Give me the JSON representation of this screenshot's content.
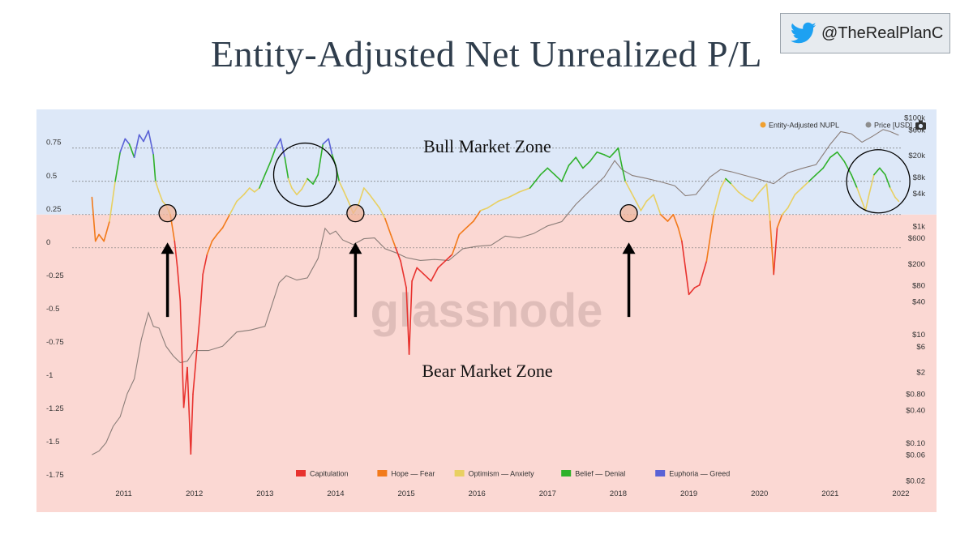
{
  "title": "Entity-Adjusted Net Unrealized P/L",
  "twitter_handle": "@TheRealPlanC",
  "icons": {
    "twitter": "bird-icon",
    "camera": "camera-icon"
  },
  "colors": {
    "bull_zone_bg": "#dde8f8",
    "bear_zone_bg": "#fbd8d3",
    "title_text": "#2f3d4c",
    "price_line": "#8a7d78",
    "twitter_blue": "#1da1f2"
  },
  "zones": {
    "bull_label": "Bull Market Zone",
    "bear_label": "Bear Market Zone",
    "boundary_nupl": 0.25
  },
  "watermark": "glassnode",
  "chart_data": {
    "type": "line",
    "x_tick_labels": [
      "2011",
      "2012",
      "2013",
      "2014",
      "2015",
      "2016",
      "2017",
      "2018",
      "2019",
      "2020",
      "2021",
      "2022"
    ],
    "xlim": [
      2010.5,
      2022.0
    ],
    "y_left": {
      "tick_labels": [
        "0.75",
        "0.5",
        "0.25",
        "0",
        "-0.25",
        "-0.5",
        "-0.75",
        "-1",
        "-1.25",
        "-1.5",
        "-1.75"
      ],
      "ticks": [
        0.75,
        0.5,
        0.25,
        0,
        -0.25,
        -0.5,
        -0.75,
        -1,
        -1.25,
        -1.5,
        -1.75
      ],
      "ylim": [
        -1.75,
        0.98
      ]
    },
    "y_right": {
      "scale": "log",
      "tick_labels": [
        "$100k",
        "$60k",
        "$20k",
        "$8k",
        "$4k",
        "$1k",
        "$600",
        "$200",
        "$80",
        "$40",
        "$10",
        "$6",
        "$2",
        "$0.80",
        "$0.40",
        "$0.10",
        "$0.06",
        "$0.02"
      ],
      "ticks": [
        100000,
        60000,
        20000,
        8000,
        4000,
        1000,
        600,
        200,
        80,
        40,
        10,
        6,
        2,
        0.8,
        0.4,
        0.1,
        0.06,
        0.02
      ],
      "ylim": [
        0.02,
        100000
      ]
    },
    "legend_top": [
      {
        "label": "Entity-Adjusted NUPL",
        "color": "#f0a030"
      },
      {
        "label": "Price [USD]",
        "color": "#8e8e8e"
      }
    ],
    "legend_bottom": [
      {
        "label": "Capitulation",
        "color": "#e8322e",
        "range": [
          -10,
          0
        ]
      },
      {
        "label": "Hope — Fear",
        "color": "#f27a1a",
        "range": [
          0,
          0.25
        ]
      },
      {
        "label": "Optimism — Anxiety",
        "color": "#e8d062",
        "range": [
          0.25,
          0.5
        ]
      },
      {
        "label": "Belief — Denial",
        "color": "#2fb12a",
        "range": [
          0.5,
          0.75
        ]
      },
      {
        "label": "Euphoria — Greed",
        "color": "#5a62d6",
        "range": [
          0.75,
          10
        ]
      }
    ],
    "series": [
      {
        "name": "Entity-Adjusted NUPL",
        "x": [
          2010.55,
          2010.6,
          2010.65,
          2010.72,
          2010.8,
          2010.88,
          2010.95,
          2011.02,
          2011.08,
          2011.15,
          2011.22,
          2011.28,
          2011.35,
          2011.42,
          2011.45,
          2011.5,
          2011.55,
          2011.6,
          2011.66,
          2011.72,
          2011.76,
          2011.8,
          2011.85,
          2011.9,
          2011.95,
          2011.98,
          2012.03,
          2012.08,
          2012.12,
          2012.18,
          2012.25,
          2012.32,
          2012.4,
          2012.5,
          2012.6,
          2012.7,
          2012.78,
          2012.85,
          2012.92,
          2013.0,
          2013.08,
          2013.15,
          2013.22,
          2013.28,
          2013.33,
          2013.38,
          2013.45,
          2013.52,
          2013.6,
          2013.68,
          2013.75,
          2013.82,
          2013.9,
          2013.95,
          2014.0,
          2014.05,
          2014.12,
          2014.18,
          2014.25,
          2014.32,
          2014.4,
          2014.48,
          2014.55,
          2014.62,
          2014.7,
          2014.78,
          2014.85,
          2014.92,
          2015.0,
          2015.04,
          2015.08,
          2015.15,
          2015.25,
          2015.35,
          2015.45,
          2015.55,
          2015.65,
          2015.75,
          2015.85,
          2015.95,
          2016.05,
          2016.15,
          2016.3,
          2016.45,
          2016.6,
          2016.75,
          2016.9,
          2017.0,
          2017.1,
          2017.2,
          2017.3,
          2017.4,
          2017.5,
          2017.6,
          2017.7,
          2017.8,
          2017.88,
          2017.95,
          2018.0,
          2018.05,
          2018.1,
          2018.18,
          2018.25,
          2018.32,
          2018.4,
          2018.5,
          2018.6,
          2018.7,
          2018.78,
          2018.85,
          2018.9,
          2018.95,
          2019.0,
          2019.08,
          2019.15,
          2019.25,
          2019.35,
          2019.45,
          2019.52,
          2019.6,
          2019.7,
          2019.8,
          2019.9,
          2020.0,
          2020.1,
          2020.15,
          2020.2,
          2020.25,
          2020.32,
          2020.4,
          2020.5,
          2020.6,
          2020.7,
          2020.8,
          2020.9,
          2021.0,
          2021.1,
          2021.2,
          2021.3,
          2021.38,
          2021.45,
          2021.5,
          2021.55,
          2021.62,
          2021.7,
          2021.78,
          2021.85,
          2021.92,
          2021.97
        ],
        "y": [
          0.38,
          0.05,
          0.1,
          0.05,
          0.2,
          0.5,
          0.72,
          0.82,
          0.78,
          0.68,
          0.85,
          0.8,
          0.88,
          0.7,
          0.5,
          0.42,
          0.35,
          0.32,
          0.25,
          0.05,
          -0.15,
          -0.4,
          -1.2,
          -0.9,
          -1.55,
          -1.1,
          -0.8,
          -0.5,
          -0.2,
          -0.05,
          0.05,
          0.1,
          0.15,
          0.25,
          0.35,
          0.4,
          0.45,
          0.42,
          0.45,
          0.55,
          0.65,
          0.75,
          0.82,
          0.68,
          0.52,
          0.45,
          0.4,
          0.44,
          0.52,
          0.48,
          0.55,
          0.78,
          0.82,
          0.7,
          0.62,
          0.5,
          0.42,
          0.35,
          0.26,
          0.32,
          0.45,
          0.4,
          0.35,
          0.3,
          0.22,
          0.1,
          0.0,
          -0.1,
          -0.3,
          -0.8,
          -0.25,
          -0.15,
          -0.2,
          -0.25,
          -0.15,
          -0.1,
          -0.05,
          0.1,
          0.15,
          0.2,
          0.28,
          0.3,
          0.35,
          0.38,
          0.42,
          0.45,
          0.55,
          0.6,
          0.55,
          0.5,
          0.62,
          0.68,
          0.6,
          0.65,
          0.72,
          0.7,
          0.68,
          0.72,
          0.75,
          0.62,
          0.5,
          0.42,
          0.35,
          0.28,
          0.35,
          0.4,
          0.25,
          0.2,
          0.25,
          0.15,
          0.05,
          -0.15,
          -0.35,
          -0.3,
          -0.28,
          -0.1,
          0.25,
          0.45,
          0.52,
          0.48,
          0.42,
          0.38,
          0.35,
          0.42,
          0.48,
          0.2,
          -0.2,
          0.15,
          0.25,
          0.3,
          0.4,
          0.45,
          0.5,
          0.55,
          0.6,
          0.68,
          0.72,
          0.65,
          0.55,
          0.45,
          0.35,
          0.28,
          0.4,
          0.55,
          0.6,
          0.55,
          0.45,
          0.38,
          0.35
        ]
      },
      {
        "name": "Price [USD]",
        "x": [
          2010.55,
          2010.65,
          2010.75,
          2010.85,
          2010.95,
          2011.05,
          2011.15,
          2011.25,
          2011.35,
          2011.42,
          2011.5,
          2011.6,
          2011.7,
          2011.8,
          2011.9,
          2012.0,
          2012.2,
          2012.4,
          2012.6,
          2012.8,
          2013.0,
          2013.2,
          2013.3,
          2013.45,
          2013.6,
          2013.75,
          2013.85,
          2013.92,
          2014.0,
          2014.1,
          2014.25,
          2014.4,
          2014.55,
          2014.7,
          2014.85,
          2015.0,
          2015.2,
          2015.4,
          2015.6,
          2015.8,
          2016.0,
          2016.2,
          2016.4,
          2016.6,
          2016.8,
          2017.0,
          2017.2,
          2017.4,
          2017.6,
          2017.8,
          2017.95,
          2018.05,
          2018.2,
          2018.4,
          2018.6,
          2018.8,
          2018.95,
          2019.1,
          2019.3,
          2019.45,
          2019.6,
          2019.8,
          2020.0,
          2020.2,
          2020.4,
          2020.6,
          2020.8,
          2021.0,
          2021.15,
          2021.3,
          2021.45,
          2021.6,
          2021.75,
          2021.85,
          2021.97
        ],
        "y": [
          0.06,
          0.07,
          0.1,
          0.2,
          0.3,
          0.8,
          1.5,
          8,
          25,
          14,
          13,
          6,
          4,
          3,
          3.2,
          5,
          5,
          6,
          11,
          12,
          14,
          90,
          120,
          100,
          110,
          250,
          900,
          700,
          800,
          550,
          450,
          580,
          600,
          380,
          320,
          260,
          230,
          240,
          230,
          380,
          420,
          440,
          650,
          600,
          720,
          1000,
          1200,
          2500,
          4500,
          8000,
          16000,
          11000,
          8500,
          7500,
          6500,
          5500,
          3600,
          3800,
          8000,
          11000,
          10000,
          8500,
          7200,
          6000,
          9500,
          11500,
          13500,
          32000,
          55000,
          50000,
          35000,
          45000,
          60000,
          55000,
          47000
        ]
      }
    ],
    "highlight_circles": [
      {
        "x": 2011.62,
        "y": 0.26,
        "type": "small-filled"
      },
      {
        "x": 2014.28,
        "y": 0.26,
        "type": "small-filled"
      },
      {
        "x": 2018.15,
        "y": 0.26,
        "type": "small-filled"
      },
      {
        "x": 2013.57,
        "y": 0.55,
        "type": "large-outline"
      },
      {
        "x": 2021.68,
        "y": 0.5,
        "type": "large-outline"
      }
    ],
    "arrows": [
      {
        "x": 2011.62,
        "from_y": -0.52,
        "to_y": 0.04
      },
      {
        "x": 2014.28,
        "from_y": -0.52,
        "to_y": 0.04
      },
      {
        "x": 2018.15,
        "from_y": -0.52,
        "to_y": 0.04
      }
    ]
  }
}
